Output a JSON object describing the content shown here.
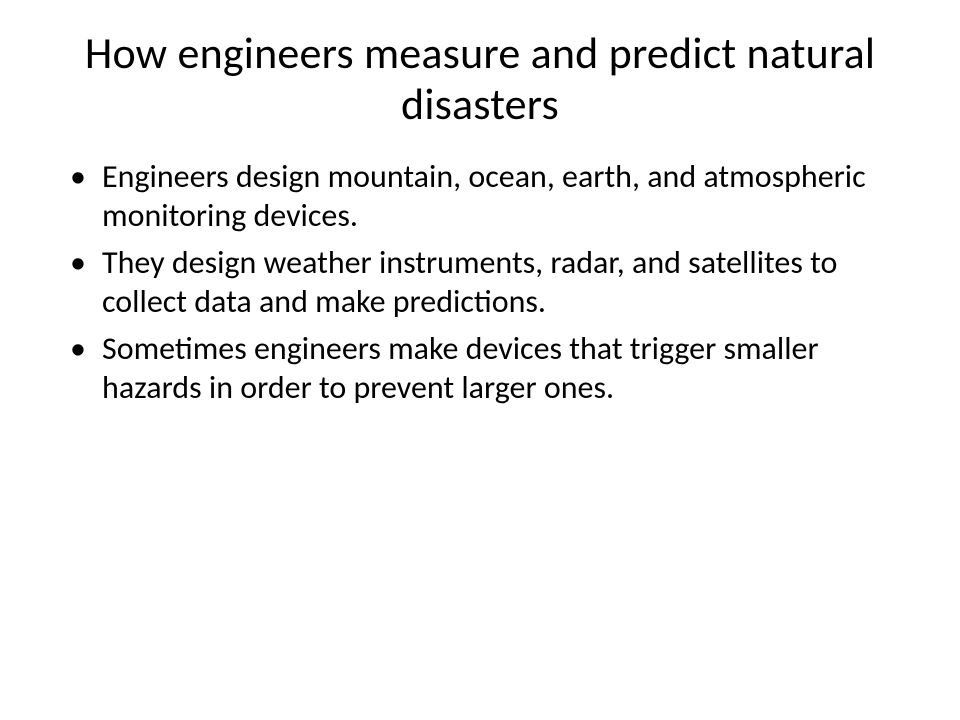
{
  "slide": {
    "title": "How engineers measure and predict natural disasters",
    "bullets": [
      "Engineers design mountain, ocean, earth, and atmospheric monitoring devices.",
      "They design weather instruments, radar, and satellites to collect data and make predictions.",
      "Sometimes engineers make devices that trigger smaller hazards in order to prevent larger ones."
    ],
    "style": {
      "background_color": "#ffffff",
      "text_color": "#000000",
      "title_fontsize": 44,
      "title_align": "center",
      "bullet_fontsize": 32,
      "bullet_marker": "•",
      "font_family": "Calibri"
    }
  }
}
